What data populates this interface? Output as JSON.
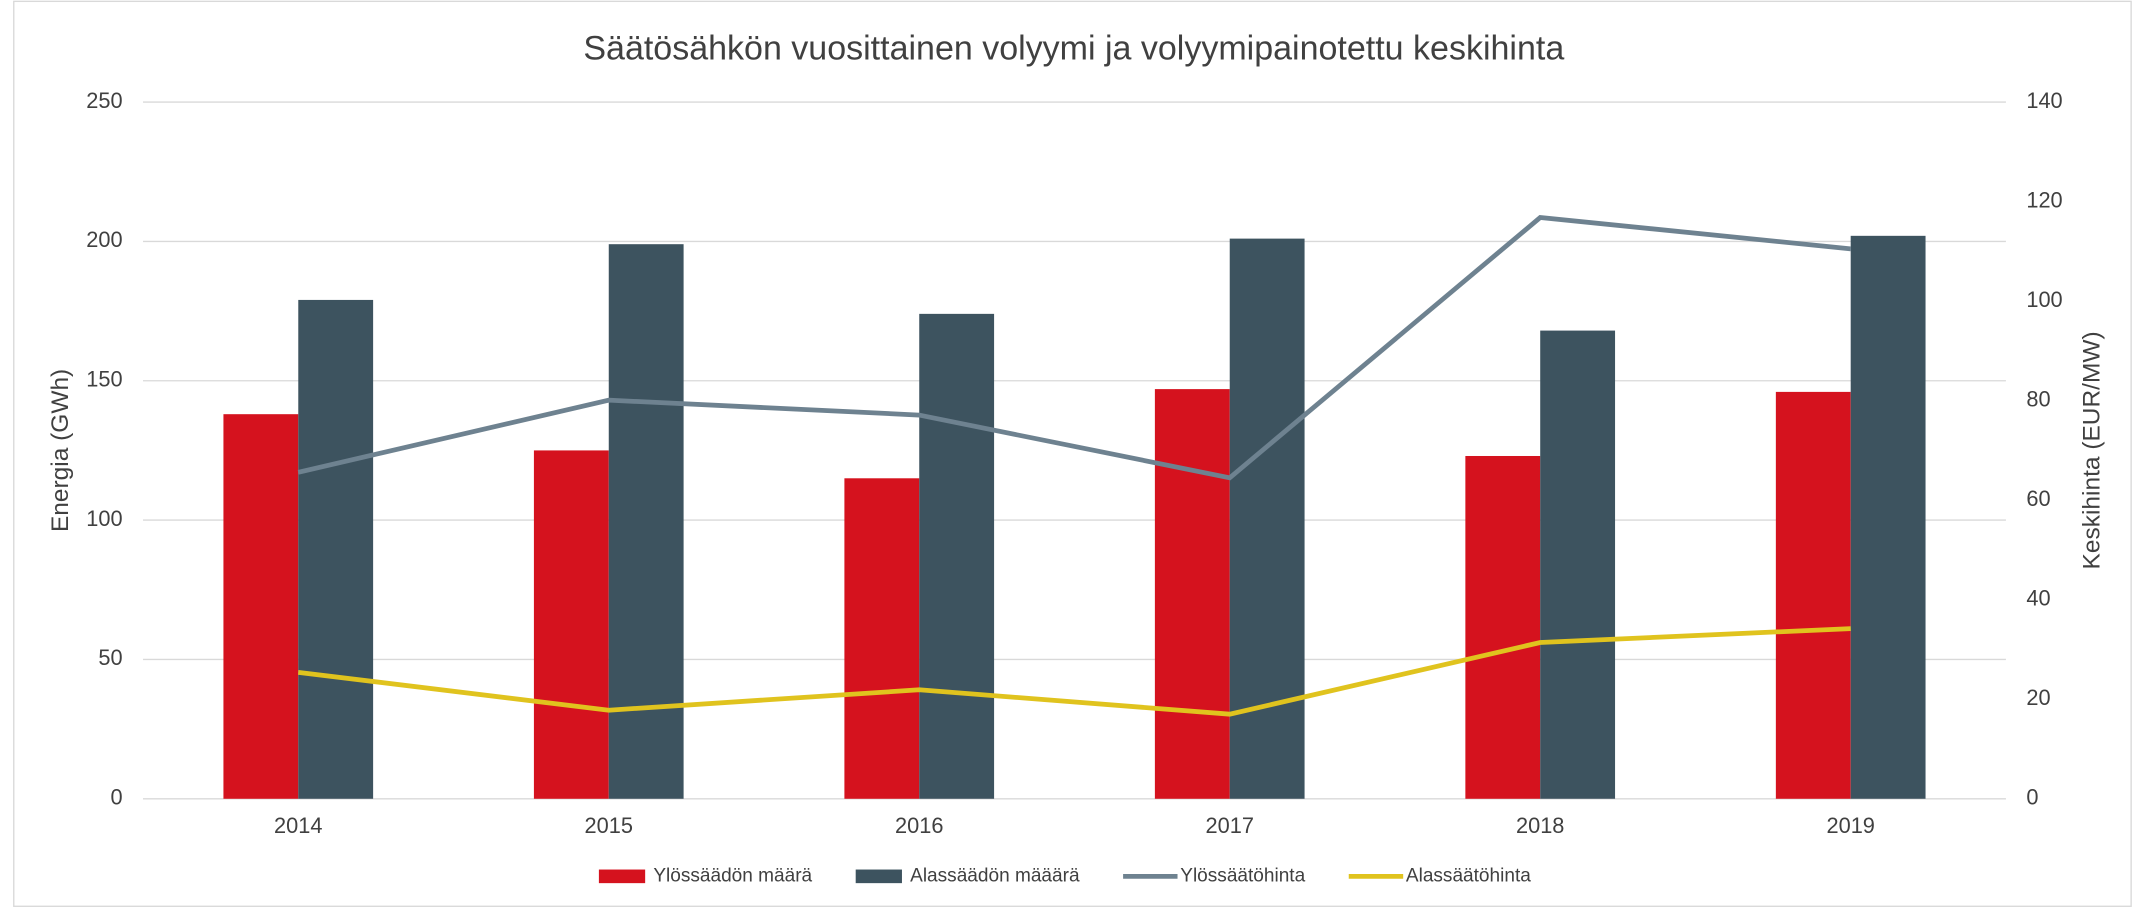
{
  "chart_data": {
    "type": "bar",
    "title": "Säätösähkön vuosittainen volyymi ja volyymipainotettu keskihinta",
    "ylabel": "Energia (GWh)",
    "y2label": "Keskihinta (EUR/MW)",
    "categories": [
      "2014",
      "2015",
      "2016",
      "2017",
      "2018",
      "2019"
    ],
    "series": [
      {
        "name": "Ylössäädön määrä",
        "type": "bar",
        "color": "#d5121e",
        "values": [
          138,
          125,
          115,
          147,
          123,
          146
        ]
      },
      {
        "name": "Alassäädön määärä",
        "type": "bar",
        "color": "#3d535f",
        "values": [
          179,
          199,
          174,
          201,
          168,
          202
        ]
      },
      {
        "name": "Ylössäätöhinta",
        "type": "line",
        "axis": "y2",
        "color": "#6e8290",
        "values": [
          65.6,
          80.1,
          77.1,
          64.5,
          116.8,
          110.5
        ]
      },
      {
        "name": "Alassäätöhinta",
        "type": "line",
        "axis": "y2",
        "color": "#e0c31e",
        "values": [
          25.4,
          17.8,
          21.9,
          17,
          31.4,
          34.2
        ]
      }
    ],
    "ylim": [
      0,
      250
    ],
    "yticks": [
      0,
      50,
      100,
      150,
      200,
      250
    ],
    "y2lim": [
      0,
      140
    ],
    "y2ticks": [
      0,
      20,
      40,
      60,
      80,
      100,
      120,
      140
    ],
    "grid": true,
    "legend": "bottom"
  }
}
